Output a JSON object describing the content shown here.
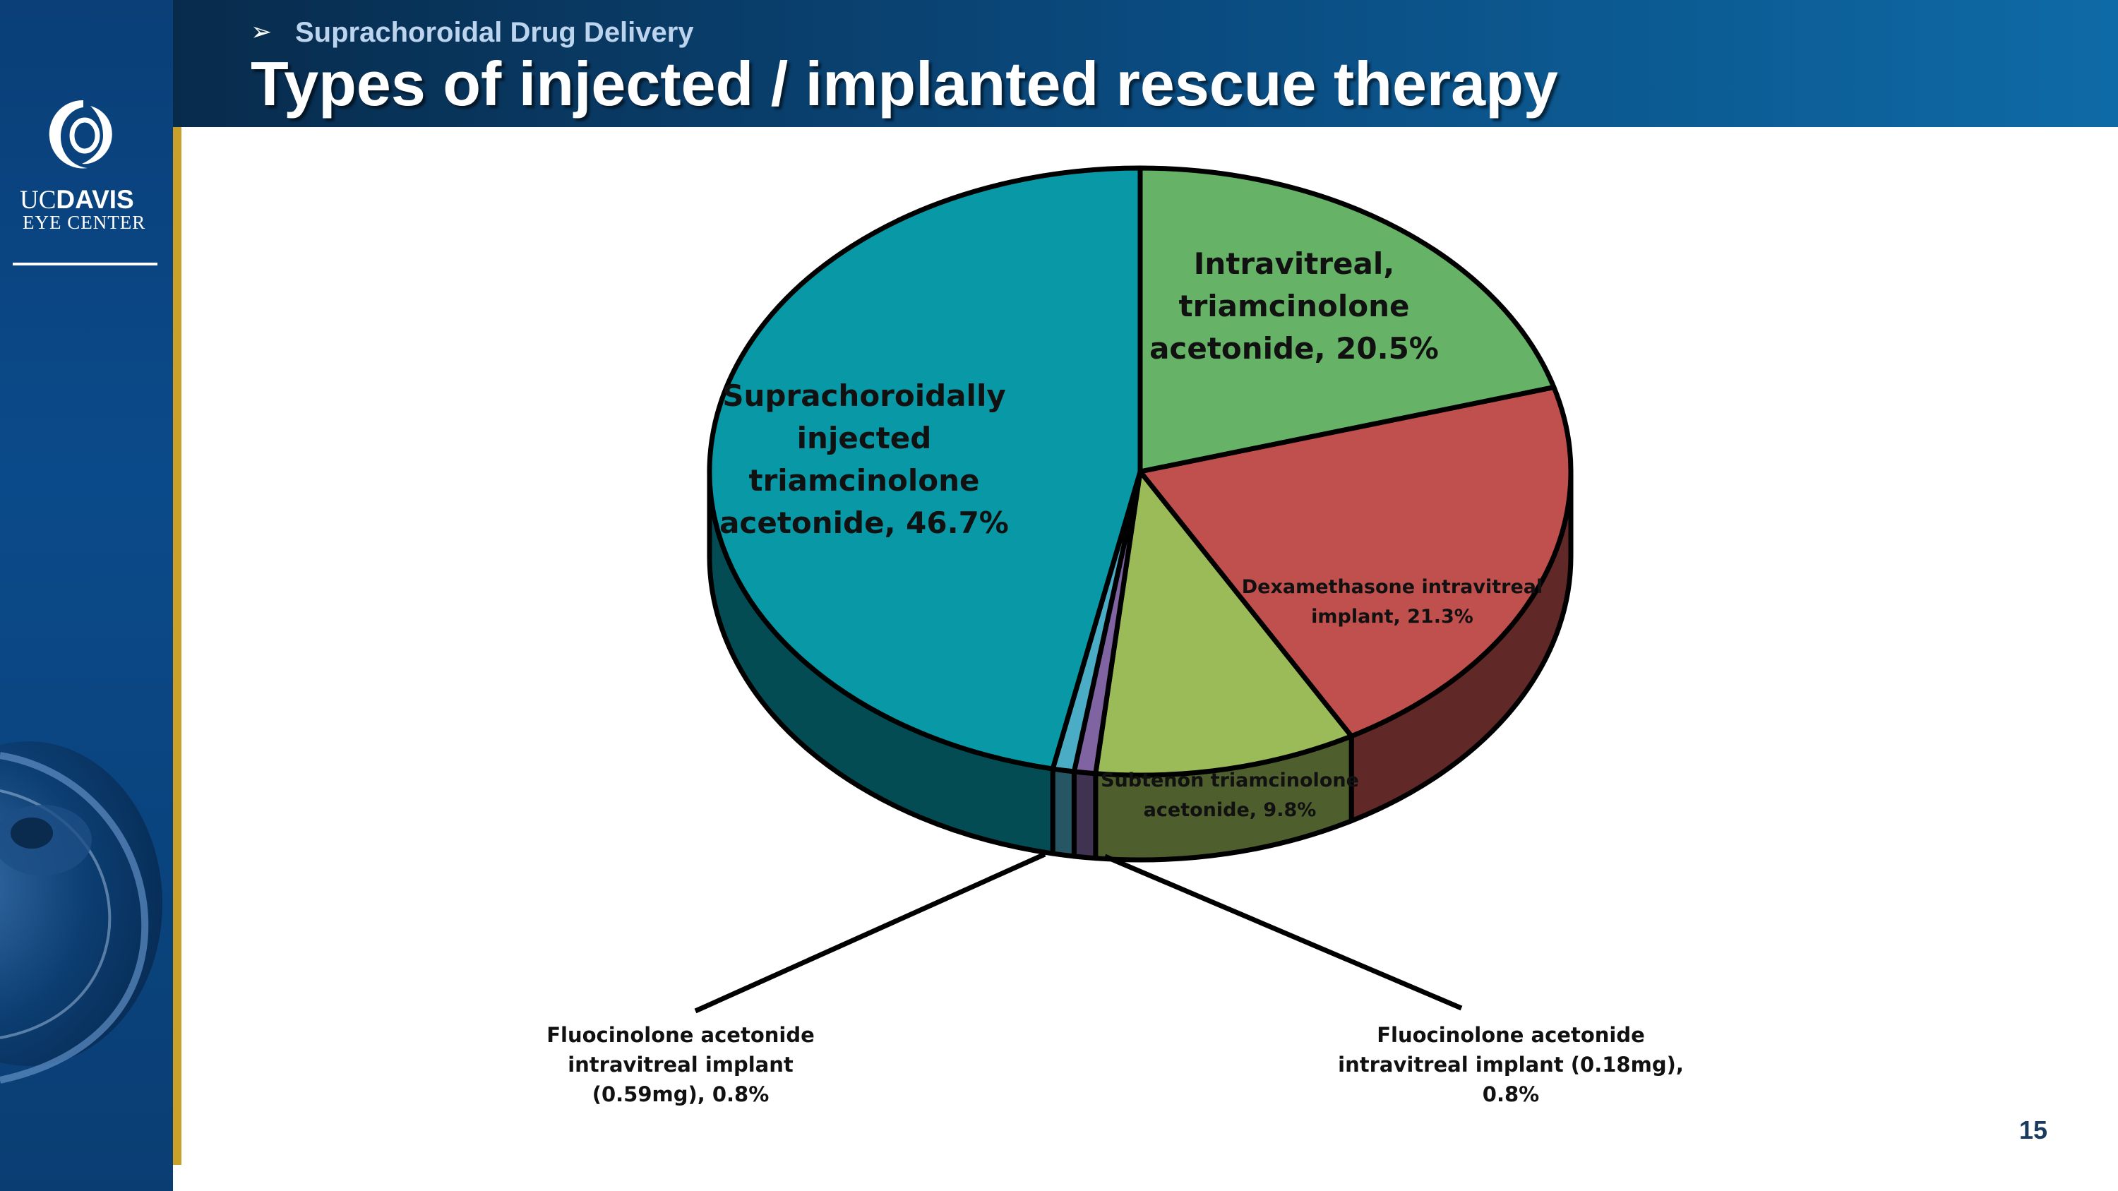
{
  "header": {
    "subtitle": "Suprachoroidal Drug Delivery",
    "title": "Types of injected / implanted rescue therapy",
    "arrow": "➢"
  },
  "logo": {
    "uc": "UC",
    "davis": "DAVIS",
    "eye_center": "EYE CENTER"
  },
  "page_number": "15",
  "colors": {
    "teal": "#0898A6",
    "green": "#66B266",
    "red": "#C0504D",
    "lime": "#9BBB59",
    "purple": "#8064A2",
    "lightblue": "#4BACC6"
  },
  "chart_data": {
    "type": "pie",
    "style": "3d-exploded-none",
    "title": "",
    "slices": [
      {
        "name": "Intravitreal, triamcinolone acetonide",
        "value": 20.5,
        "color": "#66B266",
        "label_lines": [
          "Intravitreal,",
          "triamcinolone",
          "acetonide, 20.5%"
        ]
      },
      {
        "name": "Dexamethasone intravitreal implant",
        "value": 21.3,
        "color": "#C0504D",
        "label_lines": [
          "Dexamethasone intravitreal",
          "implant, 21.3%"
        ]
      },
      {
        "name": "Subtenon triamcinolone acetonide",
        "value": 9.8,
        "color": "#9BBB59",
        "label_lines": [
          "Subtenon triamcinolone",
          "acetonide, 9.8%"
        ]
      },
      {
        "name": "Fluocinolone acetonide intravitreal implant (0.18mg)",
        "value": 0.8,
        "color": "#8064A2",
        "label_lines": [
          "Fluocinolone acetonide",
          "intravitreal implant (0.18mg),",
          "0.8%"
        ]
      },
      {
        "name": "Fluocinolone acetonide intravitreal implant (0.59mg)",
        "value": 0.8,
        "color": "#4BACC6",
        "label_lines": [
          "Fluocinolone acetonide",
          "intravitreal implant",
          "(0.59mg), 0.8%"
        ]
      },
      {
        "name": "Suprachoroidally injected triamcinolone acetonide",
        "value": 46.7,
        "color": "#0898A6",
        "label_lines": [
          "Suprachoroidally",
          "injected",
          "triamcinolone",
          "acetonide, 46.7%"
        ]
      }
    ]
  }
}
